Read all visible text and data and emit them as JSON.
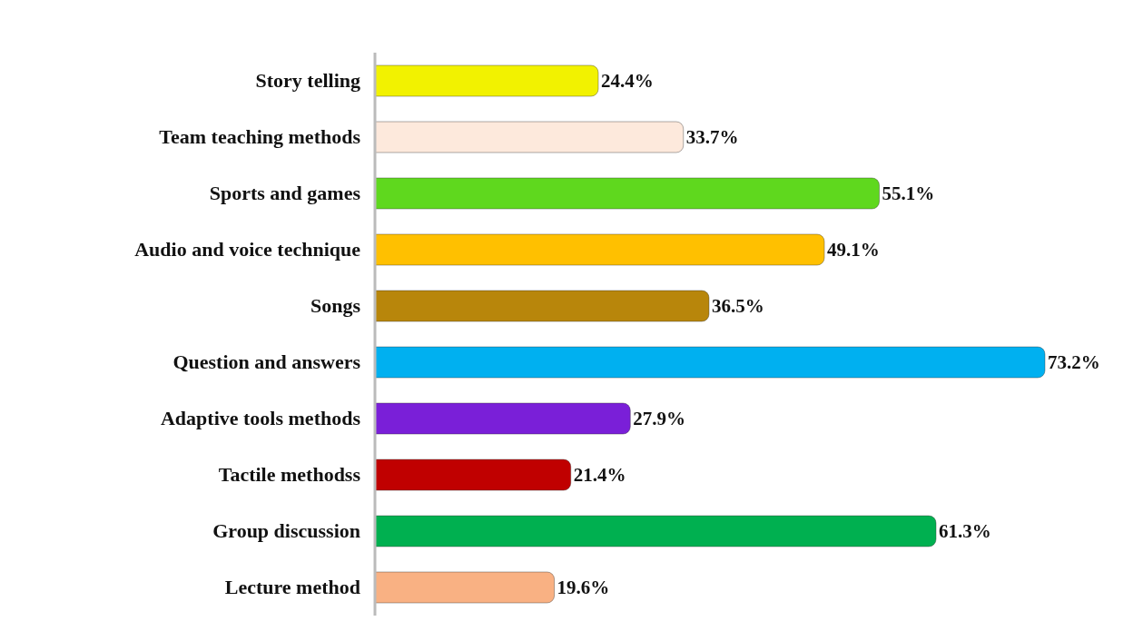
{
  "chart_data": {
    "type": "bar",
    "orientation": "horizontal",
    "categories": [
      "Story telling",
      "Team teaching methods",
      "Sports and games",
      "Audio and voice technique",
      "Songs",
      "Question and answers",
      "Adaptive tools methods",
      "Tactile methodss",
      "Group discussion",
      "Lecture method"
    ],
    "values": [
      24.4,
      33.7,
      55.1,
      49.1,
      36.5,
      73.2,
      27.9,
      21.4,
      61.3,
      19.6
    ],
    "value_labels": [
      "24.4%",
      "33.7%",
      "55.1%",
      "49.1%",
      "36.5%",
      "73.2%",
      "27.9%",
      "21.4%",
      "61.3%",
      "19.6%"
    ],
    "colors": [
      "#f2f200",
      "#fde9dc",
      "#5fd81e",
      "#ffc000",
      "#b8860b",
      "#00b0f0",
      "#7a1fd8",
      "#c00000",
      "#00b050",
      "#f9b183"
    ],
    "grid": false,
    "legend": false
  }
}
